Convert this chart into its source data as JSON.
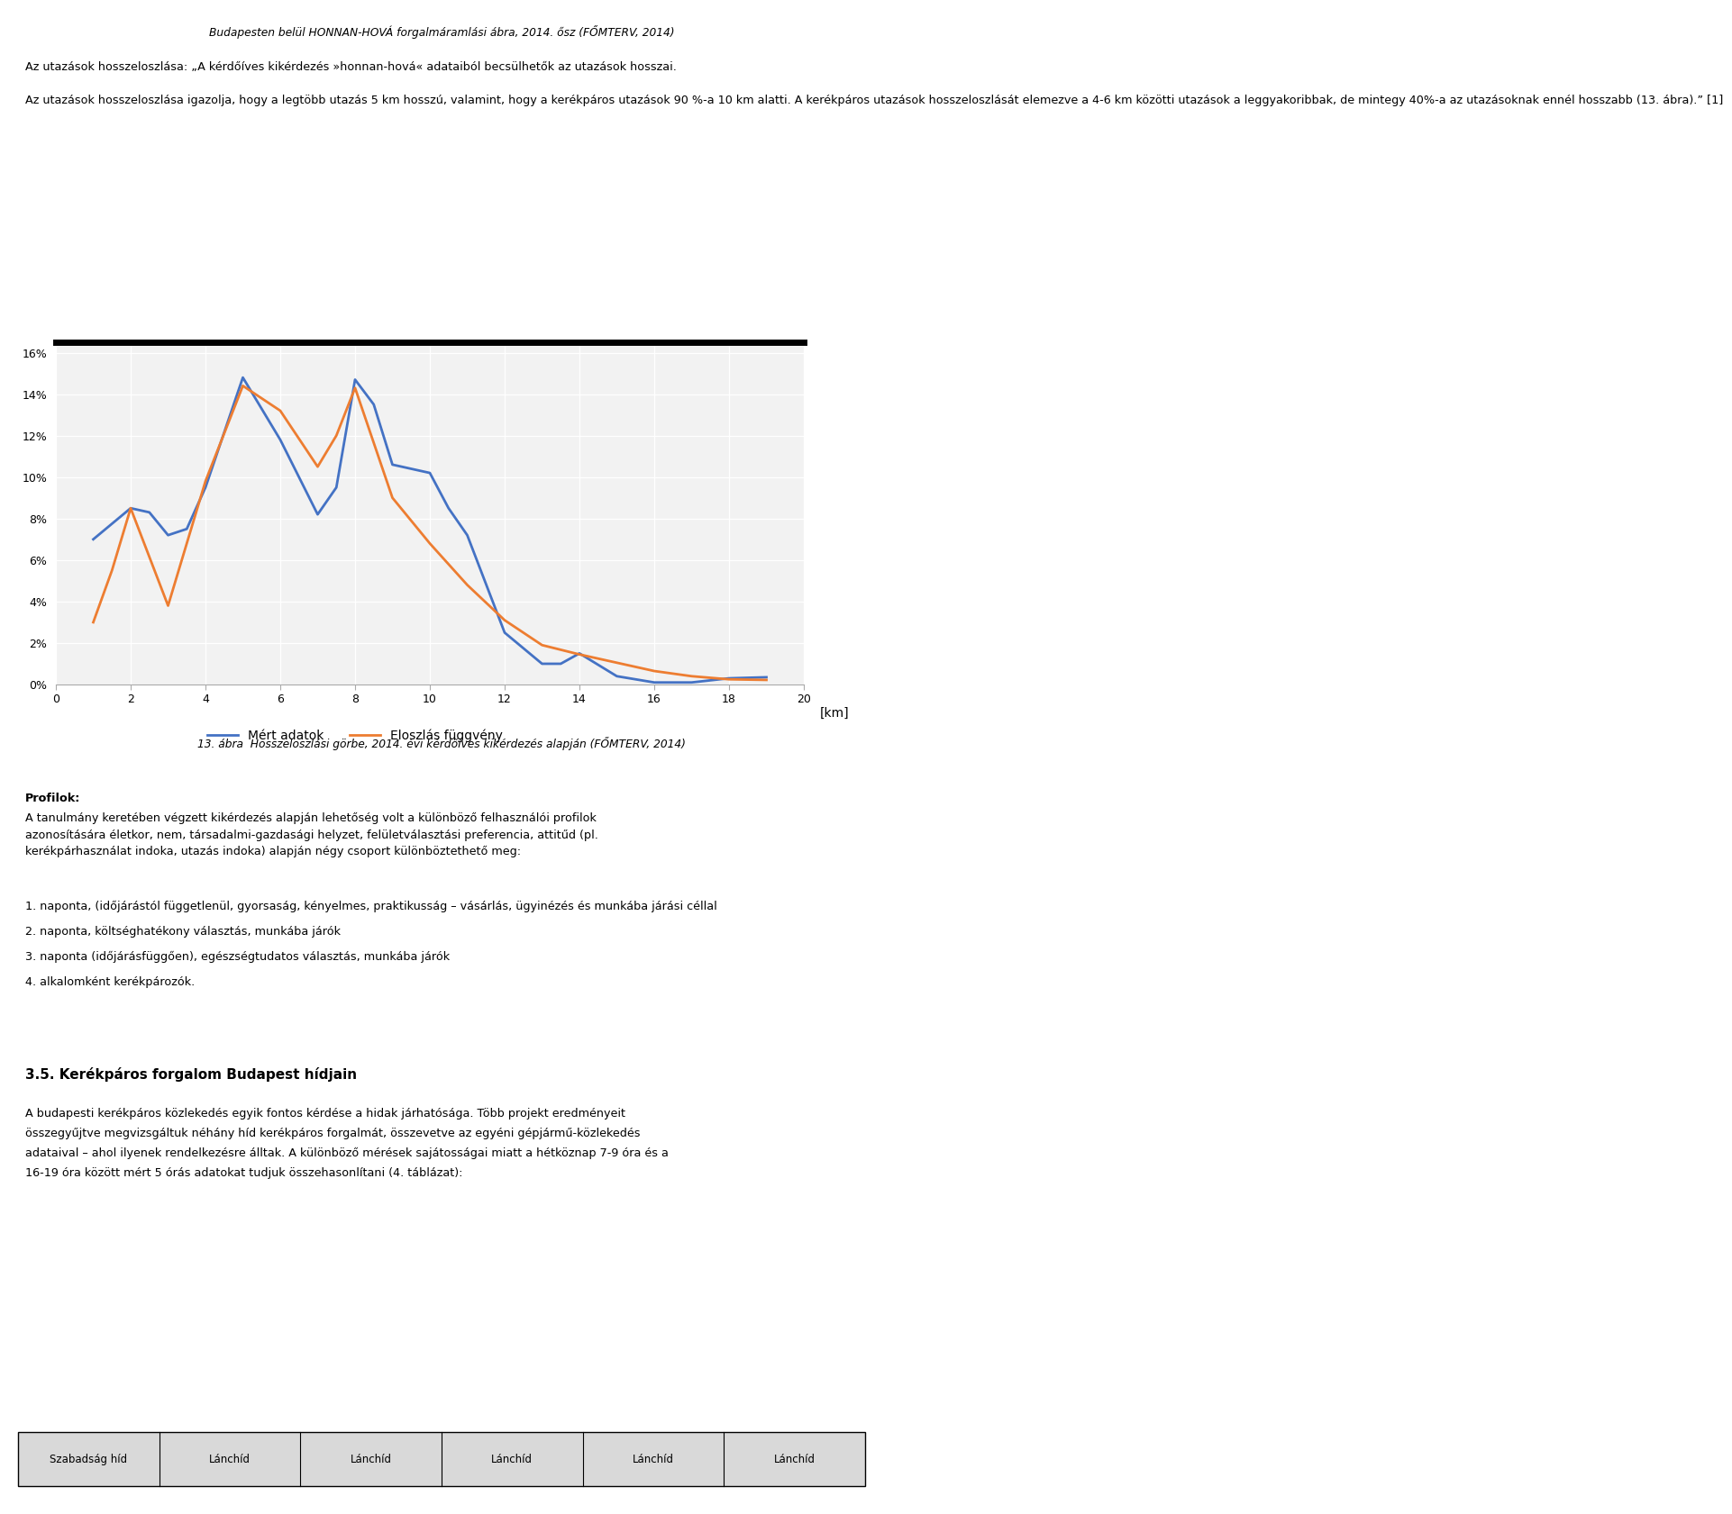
{
  "page_title": "Budapesten belül HONNAN-HOVÁ forgalmáramlási ábra, 2014. ősz (FŐMTERV, 2014)",
  "body_text_1a": "Az utazások hosszeloszlása: „A kérdőíves kikérdezés »honnan-hová« adataiból becsülhetők az utazások hosszai.",
  "body_text_1b": "Az utazások hosszeloszlása igazolja, hogy a legtöbb utazás 5 km hosszú, valamint, hogy a kerékpáros utazások 90 %-a 10 km alatti. A kerékpáros utazások hosszeloszlását elemezve a 4-6 km közötti utazások a leggyakoribbak, de mintegy 40%-a az utazásoknak ennél hosszabb (13. ábra).” [1]",
  "chart_plot_bg": "#f2f2f2",
  "grid_color": "#ffffff",
  "blue_color": "#4472C4",
  "orange_color": "#ED7D31",
  "blue_label": "Mért adatok",
  "orange_label": "Eloszlás függvény",
  "unit_label": "[km]",
  "caption_bold": "13. ábra",
  "caption_italic": "Hosszeloszlási görbe, 2014. évi kérdőíves kikérdezés alapján (FŐMTERV, 2014)",
  "x_ticks": [
    0,
    2,
    4,
    6,
    8,
    10,
    12,
    14,
    16,
    18,
    20
  ],
  "ylim": [
    0,
    16.5
  ],
  "xlim": [
    0,
    20
  ],
  "blue_x": [
    1.0,
    2.0,
    2.5,
    3.0,
    3.5,
    4.0,
    5.0,
    6.0,
    7.0,
    7.5,
    8.0,
    8.5,
    9.0,
    9.5,
    10.0,
    10.5,
    11.0,
    12.0,
    13.0,
    13.5,
    14.0,
    15.0,
    16.0,
    17.0,
    18.0,
    19.0
  ],
  "blue_y": [
    7.0,
    8.5,
    8.3,
    7.2,
    7.5,
    9.5,
    14.8,
    11.8,
    8.2,
    9.5,
    14.7,
    13.5,
    10.6,
    10.4,
    10.2,
    8.5,
    7.2,
    2.5,
    1.0,
    1.0,
    1.5,
    0.4,
    0.1,
    0.1,
    0.3,
    0.35
  ],
  "orange_x": [
    1.0,
    1.5,
    2.0,
    3.0,
    4.0,
    5.0,
    6.0,
    7.0,
    7.5,
    8.0,
    9.0,
    10.0,
    11.0,
    12.0,
    13.0,
    14.0,
    15.0,
    16.0,
    17.0,
    18.0,
    19.0
  ],
  "orange_y": [
    3.0,
    5.5,
    8.5,
    3.8,
    9.8,
    14.4,
    13.2,
    10.5,
    12.0,
    14.3,
    9.0,
    6.8,
    4.8,
    3.1,
    1.9,
    1.45,
    1.05,
    0.65,
    0.4,
    0.25,
    0.22
  ],
  "profilok_title": "Profilok:",
  "profilok_body": "A tanulmány keretében végzett kikérdezés alapján lehetőség volt a különböző felhasználói profilok\nazonosítására életkor, nem, társadalmi-gazdasági helyzet, felületválasztási preferencia, attitűd (pl.\nkerékpárhasználat indoka, utazás indoka) alapján négy csoport különböztethető meg:",
  "list_item1": "1. naponta, (időjárástól függetlenül, gyorsaság, kényelmes, praktikusság – vásárlás, ügyinézés és munkába járási céllal",
  "list_item2": "2. naponta, költséghatékony választás, munkába járók",
  "list_item3": "3. naponta (időjárásfüggően), egészségtudatos választás, munkába járók",
  "list_item4": "4. alkalomként kerékpározók.",
  "section_title": "3.5. Kerékpáros forgalom Budapest hídjain",
  "body_text_4a": "A budapesti kerékpáros közlekedés egyik fontos kérdése a hidak járhatósága. Több projekt eredményeit",
  "body_text_4b": "összegyűjtve megvizsgáltuk néhány híd kerékpáros forgalmát, összevetve az egyéni gépjármű-közlekedés",
  "body_text_4c": "adataival – ahol ilyenek rendelkezésre álltak. A különböző mérések sajátosságai miatt a hétköznap 7-9 óra és a",
  "body_text_4d": "16-19 óra között mért 5 órás adatokat tudjuk összehasonlítani (4. táblázat):",
  "table_headers": [
    "Szabadság híd",
    "Lánchíd",
    "Lánchíd",
    "Lánchíd",
    "Lánchíd",
    "Lánchíd"
  ],
  "table_bg": "#d9d9d9",
  "ytick_labels": [
    "0%",
    "2%",
    "4%",
    "6%",
    "8%",
    "10%",
    "12%",
    "14%",
    "16%"
  ],
  "ytick_vals": [
    0,
    2,
    4,
    6,
    8,
    10,
    12,
    14,
    16
  ]
}
